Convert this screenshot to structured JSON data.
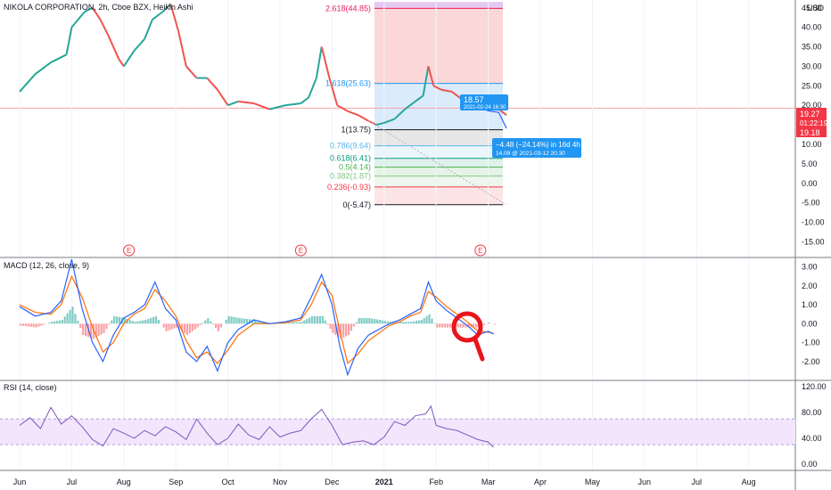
{
  "header": {
    "symbol_title": "NIKOLA CORPORATION, 2h, Cboe BZX, Heikin Ashi",
    "currency": "USD"
  },
  "chart_data": {
    "type": "line",
    "main": {
      "ylim": [
        -19,
        47
      ],
      "y_ticks": [
        "45.00",
        "40.00",
        "35.00",
        "30.00",
        "25.00",
        "20.00",
        "15.00",
        "10.00",
        "5.00",
        "0.00",
        "-5.00",
        "-10.00",
        "-15.00"
      ],
      "price_path": [
        [
          0,
          23.5
        ],
        [
          0.3,
          28
        ],
        [
          0.6,
          31
        ],
        [
          0.9,
          33
        ],
        [
          1.0,
          40
        ],
        [
          1.25,
          44
        ],
        [
          1.4,
          45
        ],
        [
          1.55,
          42
        ],
        [
          1.7,
          38
        ],
        [
          1.9,
          32
        ],
        [
          2.0,
          30
        ],
        [
          2.2,
          34
        ],
        [
          2.4,
          37
        ],
        [
          2.55,
          42
        ],
        [
          2.75,
          44
        ],
        [
          2.9,
          46
        ],
        [
          3.05,
          39
        ],
        [
          3.2,
          30
        ],
        [
          3.4,
          27
        ],
        [
          3.6,
          27
        ],
        [
          3.8,
          24
        ],
        [
          4.0,
          20
        ],
        [
          4.2,
          21
        ],
        [
          4.5,
          20.5
        ],
        [
          4.8,
          19
        ],
        [
          5.1,
          20
        ],
        [
          5.4,
          20.5
        ],
        [
          5.55,
          22
        ],
        [
          5.7,
          27
        ],
        [
          5.8,
          35
        ],
        [
          5.95,
          27
        ],
        [
          6.1,
          20
        ],
        [
          6.3,
          18.5
        ],
        [
          6.5,
          17.5
        ],
        [
          6.7,
          16
        ],
        [
          6.85,
          15
        ],
        [
          7.0,
          15.5
        ],
        [
          7.2,
          16.5
        ],
        [
          7.4,
          19
        ],
        [
          7.6,
          21
        ],
        [
          7.75,
          22.5
        ],
        [
          7.85,
          30
        ],
        [
          7.95,
          25
        ],
        [
          8.1,
          24
        ],
        [
          8.3,
          23.5
        ],
        [
          8.45,
          22
        ],
        [
          8.6,
          20.5
        ],
        [
          8.8,
          19.6
        ],
        [
          8.95,
          19
        ],
        [
          9.1,
          20.5
        ],
        [
          9.25,
          18.5
        ],
        [
          9.35,
          17.5
        ]
      ],
      "current_price": "19.27",
      "countdown": "01:22:19",
      "lower_price": "19.18",
      "fib": [
        {
          "level": "2.618",
          "value": "(44.85)",
          "price": 44.85,
          "color": "#e91e63"
        },
        {
          "level": "1.618",
          "value": "(25.63)",
          "price": 25.63,
          "color": "#2196f3"
        },
        {
          "level": "1",
          "value": "(13.75)",
          "price": 13.75,
          "color": "#131722"
        },
        {
          "level": "0.786",
          "value": "(9.64)",
          "price": 9.64,
          "color": "#5bb6e8"
        },
        {
          "level": "0.618",
          "value": "(6.41)",
          "price": 6.41,
          "color": "#089981"
        },
        {
          "level": "0.5",
          "value": "(4.14)",
          "price": 4.14,
          "color": "#4caf50"
        },
        {
          "level": "0.382",
          "value": "(1.87)",
          "price": 1.87,
          "color": "#81c784"
        },
        {
          "level": "0.236",
          "value": "(-0.93)",
          "price": -0.93,
          "color": "#f23645"
        },
        {
          "level": "0",
          "value": "(-5.47)",
          "price": -5.47,
          "color": "#131722"
        }
      ],
      "callout_high": {
        "value": "18.57",
        "datetime": "2021-02-24 16:30"
      },
      "callout_low": {
        "change": "−4.48 (−24.14%) in 16d 4h",
        "detail": "14.09 @ 2021-03-12 20:30"
      },
      "earnings_markers": [
        "E",
        "E",
        "E"
      ]
    },
    "macd": {
      "title": "MACD (12, 26, close, 9)",
      "ylim": [
        -3,
        3.5
      ],
      "y_ticks": [
        "3.00",
        "2.00",
        "1.00",
        "0.00",
        "-1.00",
        "-2.00"
      ],
      "macd_path": [
        [
          0,
          0.9
        ],
        [
          0.3,
          0.4
        ],
        [
          0.6,
          0.6
        ],
        [
          0.8,
          1.2
        ],
        [
          1.0,
          3.4
        ],
        [
          1.2,
          0.8
        ],
        [
          1.4,
          -1.0
        ],
        [
          1.6,
          -2.0
        ],
        [
          1.8,
          -0.6
        ],
        [
          2.0,
          0.3
        ],
        [
          2.2,
          0.6
        ],
        [
          2.4,
          1.0
        ],
        [
          2.6,
          2.2
        ],
        [
          2.8,
          0.8
        ],
        [
          3.0,
          0.2
        ],
        [
          3.2,
          -1.5
        ],
        [
          3.4,
          -2.0
        ],
        [
          3.6,
          -1.2
        ],
        [
          3.8,
          -2.5
        ],
        [
          4.0,
          -1.0
        ],
        [
          4.2,
          -0.3
        ],
        [
          4.5,
          0.2
        ],
        [
          4.8,
          0.0
        ],
        [
          5.1,
          0.1
        ],
        [
          5.4,
          0.3
        ],
        [
          5.6,
          1.4
        ],
        [
          5.8,
          2.6
        ],
        [
          6.0,
          1.0
        ],
        [
          6.15,
          -1.2
        ],
        [
          6.3,
          -2.7
        ],
        [
          6.5,
          -1.3
        ],
        [
          6.7,
          -0.6
        ],
        [
          6.9,
          -0.3
        ],
        [
          7.1,
          0.0
        ],
        [
          7.3,
          0.2
        ],
        [
          7.5,
          0.5
        ],
        [
          7.7,
          0.8
        ],
        [
          7.85,
          2.2
        ],
        [
          8.0,
          1.2
        ],
        [
          8.2,
          0.7
        ],
        [
          8.4,
          0.3
        ],
        [
          8.6,
          -0.1
        ],
        [
          8.8,
          -0.6
        ],
        [
          9.0,
          -0.4
        ],
        [
          9.1,
          -0.55
        ]
      ],
      "signal_path": [
        [
          0,
          1.0
        ],
        [
          0.3,
          0.6
        ],
        [
          0.6,
          0.5
        ],
        [
          0.8,
          1.0
        ],
        [
          1.0,
          2.5
        ],
        [
          1.2,
          1.4
        ],
        [
          1.4,
          -0.2
        ],
        [
          1.6,
          -1.5
        ],
        [
          1.8,
          -1.0
        ],
        [
          2.0,
          0.0
        ],
        [
          2.2,
          0.5
        ],
        [
          2.4,
          0.8
        ],
        [
          2.6,
          1.8
        ],
        [
          2.8,
          1.2
        ],
        [
          3.0,
          0.4
        ],
        [
          3.2,
          -0.9
        ],
        [
          3.4,
          -1.8
        ],
        [
          3.6,
          -1.5
        ],
        [
          3.8,
          -2.1
        ],
        [
          4.0,
          -1.4
        ],
        [
          4.2,
          -0.6
        ],
        [
          4.5,
          0.0
        ],
        [
          4.8,
          0.0
        ],
        [
          5.1,
          0.05
        ],
        [
          5.4,
          0.2
        ],
        [
          5.6,
          1.0
        ],
        [
          5.8,
          2.2
        ],
        [
          6.0,
          1.5
        ],
        [
          6.15,
          -0.4
        ],
        [
          6.3,
          -2.1
        ],
        [
          6.5,
          -1.6
        ],
        [
          6.7,
          -0.9
        ],
        [
          6.9,
          -0.5
        ],
        [
          7.1,
          -0.1
        ],
        [
          7.3,
          0.1
        ],
        [
          7.5,
          0.4
        ],
        [
          7.7,
          0.6
        ],
        [
          7.85,
          1.7
        ],
        [
          8.0,
          1.4
        ],
        [
          8.2,
          0.9
        ],
        [
          8.4,
          0.5
        ],
        [
          8.6,
          0.1
        ],
        [
          8.8,
          -0.4
        ],
        [
          9.0,
          -0.45
        ],
        [
          9.1,
          -0.5
        ]
      ]
    },
    "rsi": {
      "title": "RSI (14, close)",
      "ylim": [
        -10,
        130
      ],
      "y_ticks": [
        "120.00",
        "80.00",
        "40.00",
        "0.00"
      ],
      "band": [
        30,
        70
      ],
      "rsi_path": [
        [
          0,
          60
        ],
        [
          0.2,
          72
        ],
        [
          0.4,
          55
        ],
        [
          0.6,
          88
        ],
        [
          0.8,
          62
        ],
        [
          1.0,
          75
        ],
        [
          1.2,
          58
        ],
        [
          1.4,
          38
        ],
        [
          1.6,
          28
        ],
        [
          1.8,
          55
        ],
        [
          2.0,
          48
        ],
        [
          2.2,
          40
        ],
        [
          2.4,
          52
        ],
        [
          2.6,
          44
        ],
        [
          2.8,
          58
        ],
        [
          3.0,
          50
        ],
        [
          3.2,
          38
        ],
        [
          3.4,
          70
        ],
        [
          3.6,
          48
        ],
        [
          3.8,
          30
        ],
        [
          4.0,
          40
        ],
        [
          4.2,
          62
        ],
        [
          4.4,
          45
        ],
        [
          4.6,
          38
        ],
        [
          4.8,
          58
        ],
        [
          5.0,
          42
        ],
        [
          5.2,
          48
        ],
        [
          5.4,
          52
        ],
        [
          5.6,
          70
        ],
        [
          5.8,
          85
        ],
        [
          6.0,
          60
        ],
        [
          6.2,
          30
        ],
        [
          6.4,
          34
        ],
        [
          6.6,
          36
        ],
        [
          6.8,
          30
        ],
        [
          7.0,
          42
        ],
        [
          7.2,
          66
        ],
        [
          7.4,
          60
        ],
        [
          7.6,
          75
        ],
        [
          7.8,
          78
        ],
        [
          7.9,
          90
        ],
        [
          8.0,
          60
        ],
        [
          8.2,
          55
        ],
        [
          8.4,
          52
        ],
        [
          8.6,
          45
        ],
        [
          8.8,
          38
        ],
        [
          9.0,
          34
        ],
        [
          9.1,
          26
        ]
      ]
    },
    "x_ticks": [
      "Jun",
      "Jul",
      "Aug",
      "Sep",
      "Oct",
      "Nov",
      "Dec",
      "2021",
      "Feb",
      "Mar",
      "Apr",
      "May",
      "Jun",
      "Jul",
      "Aug"
    ]
  }
}
